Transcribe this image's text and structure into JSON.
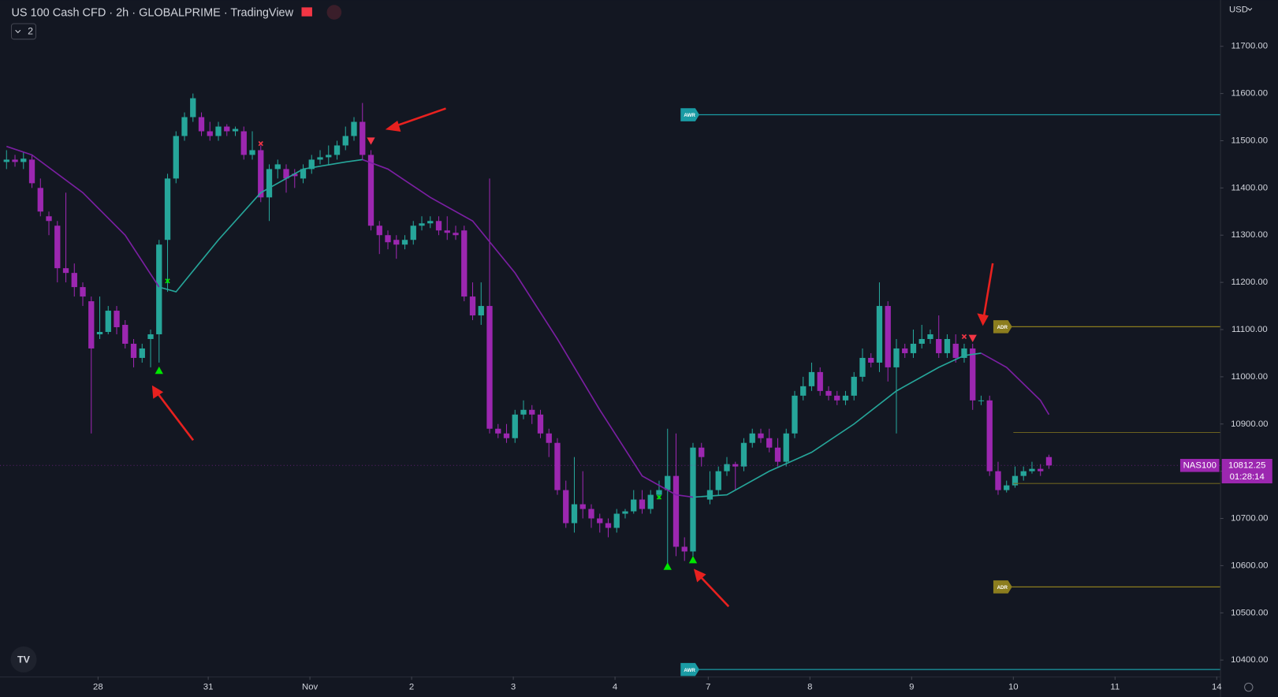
{
  "chart_data": {
    "type": "candlestick",
    "title": "US 100 Cash CFD · 2h · GLOBALPRIME · TradingView",
    "indicator_count": "2",
    "currency": "USD",
    "up_color": "#26a69a",
    "down_color": "#9c27b0",
    "xlim": [
      -0.77,
      143.2
    ],
    "ylim": [
      10365,
      11798
    ],
    "xticks": [
      {
        "value": 10.8,
        "label": "28"
      },
      {
        "value": 23.8,
        "label": "31"
      },
      {
        "value": 35.8,
        "label": "Nov"
      },
      {
        "value": 47.8,
        "label": "2"
      },
      {
        "value": 59.8,
        "label": "3"
      },
      {
        "value": 71.8,
        "label": "4"
      },
      {
        "value": 82.8,
        "label": "7"
      },
      {
        "value": 94.8,
        "label": "8"
      },
      {
        "value": 106.8,
        "label": "9"
      },
      {
        "value": 118.8,
        "label": "10"
      },
      {
        "value": 130.8,
        "label": "11"
      },
      {
        "value": 142.8,
        "label": "14"
      }
    ],
    "yticks": [
      {
        "value": 10400,
        "label": "10400.00"
      },
      {
        "value": 10500,
        "label": "10500.00"
      },
      {
        "value": 10600,
        "label": "10600.00"
      },
      {
        "value": 10700,
        "label": "10700.00"
      },
      {
        "value": 10800,
        "label": "10800.00"
      },
      {
        "value": 10900,
        "label": "10900.00"
      },
      {
        "value": 11000,
        "label": "11000.00"
      },
      {
        "value": 11100,
        "label": "11100.00"
      },
      {
        "value": 11200,
        "label": "11200.00"
      },
      {
        "value": 11300,
        "label": "11300.00"
      },
      {
        "value": 11400,
        "label": "11400.00"
      },
      {
        "value": 11500,
        "label": "11500.00"
      },
      {
        "value": 11600,
        "label": "11600.00"
      },
      {
        "value": 11700,
        "label": "11700.00"
      }
    ],
    "x": [
      0,
      1,
      2,
      3,
      4,
      5,
      6,
      7,
      8,
      9,
      10,
      11,
      12,
      13,
      14,
      15,
      16,
      17,
      18,
      19,
      20,
      21,
      22,
      23,
      24,
      25,
      26,
      27,
      28,
      29,
      30,
      31,
      32,
      33,
      34,
      35,
      36,
      37,
      38,
      39,
      40,
      41,
      42,
      43,
      44,
      45,
      46,
      47,
      48,
      49,
      50,
      51,
      52,
      53,
      54,
      55,
      56,
      57,
      58,
      59,
      60,
      61,
      62,
      63,
      64,
      65,
      66,
      67,
      68,
      69,
      70,
      71,
      72,
      73,
      74,
      75,
      76,
      77,
      78,
      79,
      80,
      81,
      82,
      83,
      84,
      85,
      86,
      87,
      88,
      89,
      90,
      91,
      92,
      93,
      94,
      95,
      96,
      97,
      98,
      99,
      100,
      101,
      102,
      103,
      104,
      105,
      106,
      107,
      108,
      109,
      110,
      111,
      112,
      113,
      114,
      115,
      116,
      117,
      118,
      119,
      120,
      121,
      122,
      123
    ],
    "open": [
      11455,
      11460,
      11455,
      11460,
      11400,
      11340,
      11320,
      11230,
      11220,
      11190,
      11160,
      11090,
      11095,
      11140,
      11110,
      11070,
      11040,
      11080,
      11090,
      11290,
      11420,
      11510,
      11550,
      11550,
      11520,
      11510,
      11530,
      11520,
      11520,
      11470,
      11480,
      11380,
      11440,
      11440,
      11430,
      11420,
      11440,
      11460,
      11465,
      11470,
      11490,
      11510,
      11540,
      11470,
      11320,
      11300,
      11290,
      11280,
      11290,
      11320,
      11325,
      11330,
      11310,
      11305,
      11310,
      11170,
      11130,
      11150,
      10890,
      10880,
      10870,
      10920,
      10930,
      10920,
      10880,
      10860,
      10760,
      10690,
      10730,
      10720,
      10700,
      10690,
      10680,
      10710,
      10715,
      10740,
      10720,
      10750,
      10760,
      10790,
      10640,
      10630,
      10850,
      10740,
      10760,
      10800,
      10815,
      10810,
      10860,
      10880,
      10870,
      10850,
      10820,
      10880,
      10960,
      10980,
      11010,
      10970,
      10960,
      10950,
      10960,
      11000,
      11040,
      11030,
      11150,
      11020,
      11060,
      11050,
      11070,
      11080,
      11080,
      11050,
      11070,
      11040,
      11060,
      10950,
      10950,
      10800,
      10760,
      10770,
      10790,
      10800,
      10805,
      10830
    ],
    "high": [
      11480,
      11470,
      11475,
      11470,
      11420,
      11350,
      11330,
      11390,
      11240,
      11200,
      11170,
      11170,
      11150,
      11150,
      11120,
      11080,
      11070,
      11100,
      11290,
      11430,
      11520,
      11560,
      11600,
      11560,
      11540,
      11540,
      11535,
      11530,
      11530,
      11520,
      11490,
      11450,
      11460,
      11450,
      11440,
      11450,
      11470,
      11480,
      11490,
      11500,
      11530,
      11550,
      11580,
      11480,
      11330,
      11310,
      11300,
      11300,
      11330,
      11340,
      11340,
      11340,
      11340,
      11320,
      11320,
      11200,
      11200,
      11420,
      10900,
      10900,
      10930,
      10950,
      10940,
      10930,
      10890,
      10870,
      10780,
      10830,
      10800,
      10730,
      10710,
      10700,
      10720,
      10720,
      10760,
      10760,
      10760,
      10780,
      10890,
      10880,
      10660,
      10860,
      10860,
      10800,
      10810,
      10830,
      10820,
      10870,
      10890,
      10890,
      10890,
      10870,
      10890,
      10970,
      11000,
      11030,
      11020,
      10980,
      10970,
      10970,
      11010,
      11060,
      11050,
      11200,
      11160,
      11080,
      11070,
      11100,
      11110,
      11100,
      11130,
      11090,
      11090,
      11070,
      11070,
      10960,
      10960,
      10820,
      10780,
      10810,
      10810,
      10820,
      10815,
      10835
    ],
    "low": [
      11440,
      11445,
      11440,
      11400,
      11340,
      11300,
      11200,
      11200,
      11170,
      11150,
      10880,
      11080,
      11090,
      11090,
      11060,
      11020,
      11030,
      11020,
      11030,
      11180,
      11410,
      11500,
      11540,
      11510,
      11500,
      11500,
      11510,
      11510,
      11460,
      11460,
      11370,
      11330,
      11420,
      11390,
      11400,
      11410,
      11430,
      11450,
      11450,
      11460,
      11480,
      11500,
      11460,
      11310,
      11260,
      11270,
      11250,
      11270,
      11280,
      11310,
      11315,
      11300,
      11290,
      11290,
      11160,
      11120,
      11110,
      10880,
      10870,
      10860,
      10860,
      10910,
      10900,
      10870,
      10830,
      10750,
      10680,
      10670,
      10700,
      10680,
      10670,
      10660,
      10670,
      10700,
      10710,
      10710,
      10710,
      10740,
      10600,
      10620,
      10610,
      10620,
      10810,
      10730,
      10750,
      10790,
      10760,
      10800,
      10850,
      10860,
      10840,
      10810,
      10810,
      10870,
      10950,
      10970,
      10960,
      10950,
      10940,
      10940,
      10950,
      10990,
      11020,
      11010,
      10990,
      10880,
      11040,
      11040,
      11060,
      11070,
      11040,
      11040,
      11030,
      11030,
      10930,
      10940,
      10790,
      10750,
      10755,
      10765,
      10780,
      10795,
      10790,
      10805
    ],
    "close": [
      11460,
      11455,
      11462,
      11410,
      11350,
      11330,
      11230,
      11220,
      11190,
      11170,
      11060,
      11095,
      11140,
      11105,
      11070,
      11040,
      11060,
      11090,
      11280,
      11420,
      11510,
      11550,
      11590,
      11520,
      11510,
      11530,
      11520,
      11525,
      11470,
      11480,
      11380,
      11440,
      11450,
      11420,
      11425,
      11440,
      11460,
      11465,
      11470,
      11490,
      11510,
      11540,
      11470,
      11320,
      11300,
      11285,
      11280,
      11290,
      11320,
      11325,
      11330,
      11310,
      11305,
      11300,
      11170,
      11130,
      11150,
      10890,
      10880,
      10870,
      10920,
      10930,
      10920,
      10880,
      10860,
      10760,
      10690,
      10730,
      10720,
      10700,
      10690,
      10680,
      10710,
      10715,
      10740,
      10720,
      10750,
      10760,
      10790,
      10640,
      10630,
      10850,
      10830,
      10760,
      10800,
      10815,
      10810,
      10860,
      10880,
      10870,
      10850,
      10820,
      10880,
      10960,
      10980,
      11010,
      10970,
      10960,
      10950,
      10960,
      11000,
      11040,
      11030,
      11150,
      11020,
      11060,
      11050,
      11070,
      11080,
      11090,
      11050,
      11080,
      11040,
      11060,
      10950,
      10950,
      10800,
      10760,
      10770,
      10790,
      10800,
      10805,
      10800,
      10812.25
    ],
    "lines": [
      {
        "color": "#7b1fa2",
        "x": [
          0,
          3,
          9,
          14,
          18
        ],
        "values": [
          11488,
          11470,
          11390,
          11300,
          11190
        ]
      },
      {
        "color": "#26a69a",
        "x": [
          18,
          20,
          25,
          30,
          35,
          40,
          42
        ],
        "values": [
          11190,
          11180,
          11290,
          11390,
          11440,
          11455,
          11460
        ]
      },
      {
        "color": "#7b1fa2",
        "x": [
          42,
          45,
          50,
          55,
          60,
          65,
          70,
          75,
          79,
          81
        ],
        "values": [
          11460,
          11440,
          11380,
          11330,
          11220,
          11080,
          10930,
          10790,
          10750,
          10745
        ]
      },
      {
        "color": "#26a69a",
        "x": [
          81,
          85,
          90,
          95,
          100,
          105,
          110,
          113,
          115
        ],
        "values": [
          10745,
          10750,
          10800,
          10840,
          10900,
          10970,
          11020,
          11045,
          11050
        ]
      },
      {
        "color": "#7b1fa2",
        "x": [
          115,
          118,
          122,
          123
        ],
        "values": [
          11050,
          11020,
          10950,
          10920
        ]
      }
    ],
    "signals": [
      {
        "shape": "triangle-up",
        "x": 18,
        "value": 11013,
        "color": "#00e600"
      },
      {
        "shape": "triangle-down",
        "x": 43,
        "value": 11500,
        "color": "#f23645"
      },
      {
        "shape": "triangle-up",
        "x": 78,
        "value": 10598,
        "color": "#00e600"
      },
      {
        "shape": "triangle-up",
        "x": 81,
        "value": 10612,
        "color": "#00e600"
      },
      {
        "shape": "triangle-down",
        "x": 114,
        "value": 11082,
        "color": "#f23645"
      },
      {
        "shape": "cross",
        "x": 19,
        "value": 11203,
        "color": "#00e600"
      },
      {
        "shape": "cross",
        "x": 30,
        "value": 11494,
        "color": "#f23645"
      },
      {
        "shape": "cross",
        "x": 77,
        "value": 10745,
        "color": "#00e600"
      },
      {
        "shape": "cross",
        "x": 113,
        "value": 11085,
        "color": "#f23645"
      }
    ],
    "levels": [
      {
        "label": "AWR",
        "value": 11555,
        "x_start": 80.5,
        "color": "#1a9ba4"
      },
      {
        "label": "AWR",
        "value": 10380,
        "x_start": 80.5,
        "color": "#1a9ba4"
      },
      {
        "label": "ADR",
        "value": 11106,
        "x_start": 117.4,
        "color": "#8c7d1e"
      },
      {
        "label": "ADR",
        "value": 10555,
        "x_start": 117.4,
        "color": "#8c7d1e"
      },
      {
        "value": 10882,
        "x_start": 118.8,
        "color": "#6b6220"
      },
      {
        "value": 10774,
        "x_start": 118.8,
        "color": "#6b6220"
      }
    ],
    "current_price": {
      "label": "NAS100",
      "value": 10812.25,
      "countdown": "01:28:14",
      "color": "#9c27b0"
    }
  }
}
